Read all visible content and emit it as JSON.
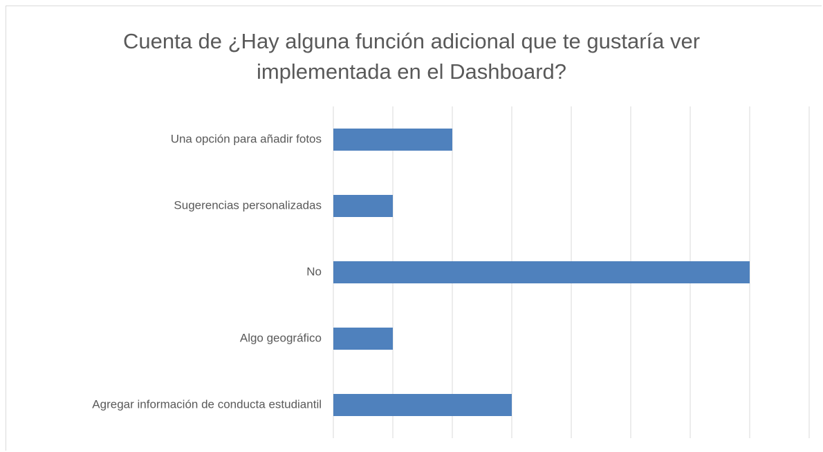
{
  "chart_data": {
    "type": "barh",
    "title": "Cuenta de ¿Hay alguna función adicional que te gustaría ver implementada en el Dashboard?",
    "categories": [
      "Una opción para añadir fotos",
      "Sugerencias personalizadas",
      "No",
      "Algo geográfico",
      "Agregar información de conducta estudiantil"
    ],
    "values": [
      2,
      1,
      7,
      1,
      3
    ],
    "color": "#4f81bd",
    "xlim": [
      0,
      8
    ],
    "xticks": [
      0,
      1,
      2,
      3,
      4,
      5,
      6,
      7,
      8
    ],
    "grid": true
  }
}
